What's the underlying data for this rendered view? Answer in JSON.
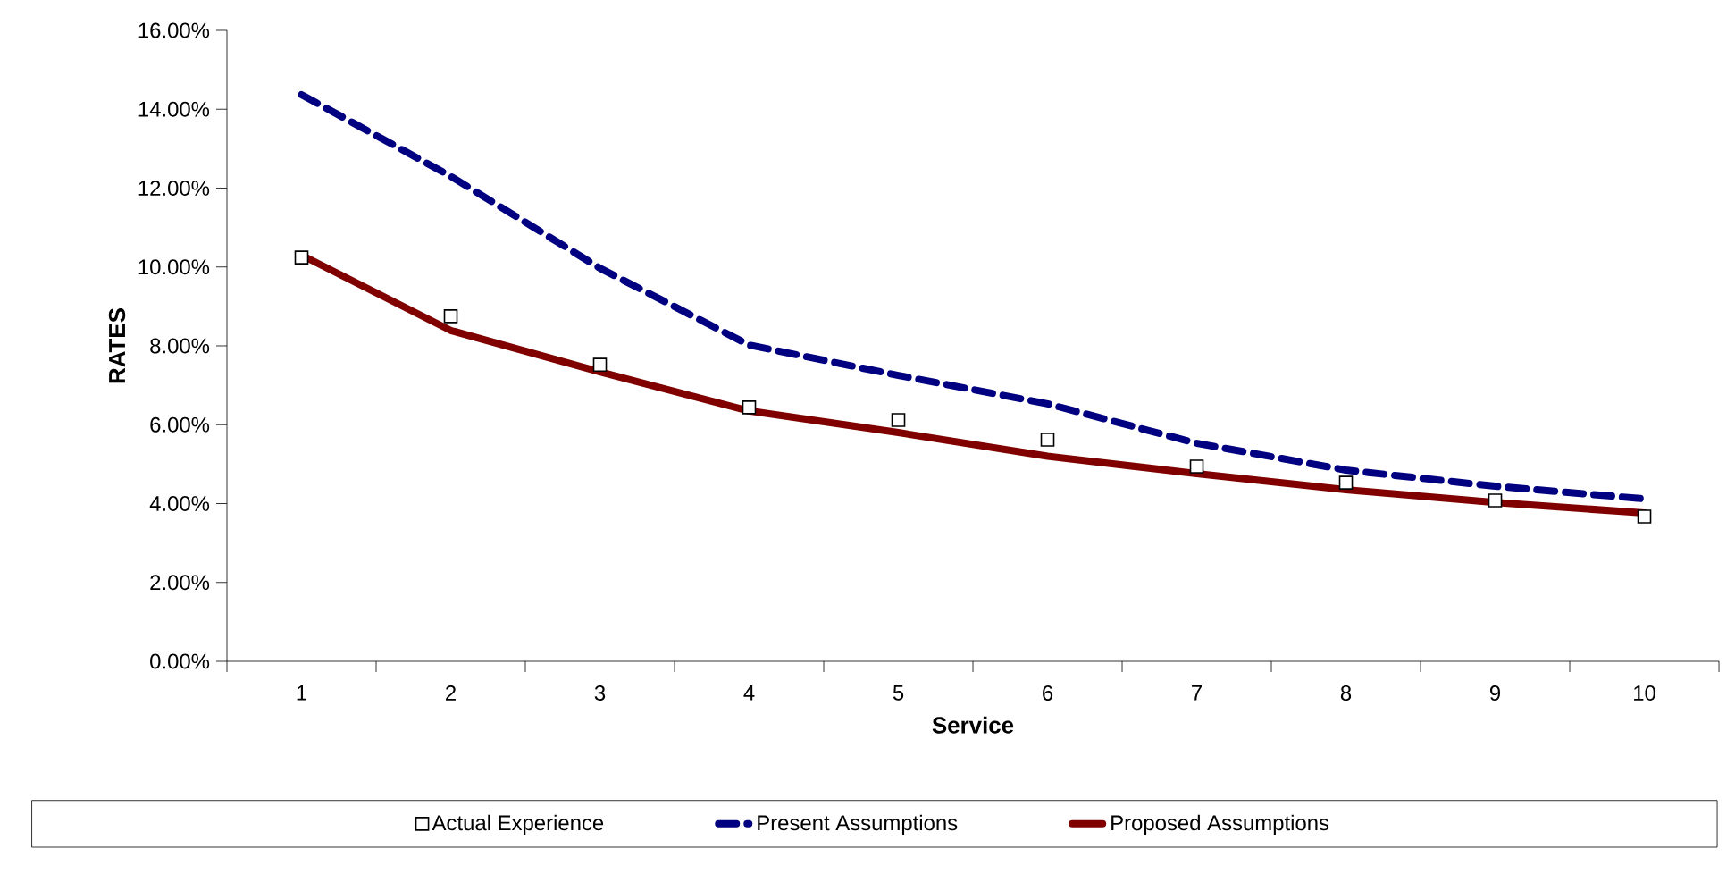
{
  "chart_data": {
    "type": "line",
    "xlabel": "Service",
    "ylabel": "RATES",
    "categories": [
      "1",
      "2",
      "3",
      "4",
      "5",
      "6",
      "7",
      "8",
      "9",
      "10"
    ],
    "series": [
      {
        "name": "Actual Experience",
        "type": "scatter",
        "marker": "square",
        "color": "#000000",
        "values": [
          10.24,
          8.75,
          7.52,
          6.44,
          6.12,
          5.62,
          4.94,
          4.53,
          4.08,
          3.67
        ]
      },
      {
        "name": "Present Assumptions",
        "line_style": "dashed",
        "color": "#000080",
        "values": [
          14.37,
          12.3,
          9.97,
          8.02,
          7.25,
          6.53,
          5.53,
          4.85,
          4.44,
          4.12
        ]
      },
      {
        "name": "Proposed Assumptions",
        "line_style": "solid",
        "color": "#800000",
        "values": [
          10.3,
          8.39,
          7.34,
          6.35,
          5.8,
          5.2,
          4.76,
          4.35,
          4.03,
          3.76
        ]
      }
    ],
    "ylim": [
      0,
      16
    ],
    "yticks": [
      {
        "value": 0,
        "label": "0.00%"
      },
      {
        "value": 2,
        "label": "2.00%"
      },
      {
        "value": 4,
        "label": "4.00%"
      },
      {
        "value": 6,
        "label": "6.00%"
      },
      {
        "value": 8,
        "label": "8.00%"
      },
      {
        "value": 10,
        "label": "10.00%"
      },
      {
        "value": 12,
        "label": "12.00%"
      },
      {
        "value": 14,
        "label": "14.00%"
      },
      {
        "value": 16,
        "label": "16.00%"
      }
    ],
    "legend": "bottom",
    "grid": false
  }
}
